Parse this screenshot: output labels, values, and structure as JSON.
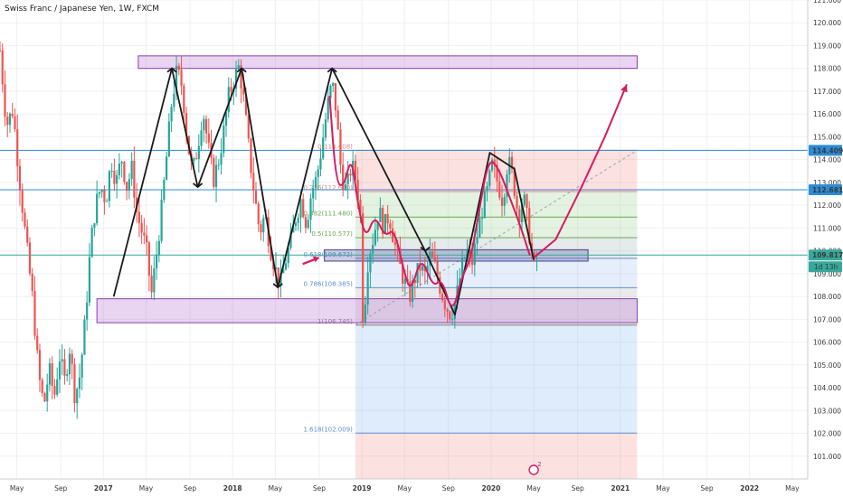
{
  "chart_data": {
    "type": "candlestick",
    "title": "Swiss Franc / Japanese Yen, 1W, FXCM",
    "y_axis": {
      "min": 100.0,
      "max": 121.0,
      "ticks": [
        {
          "v": 121,
          "label": "121.000"
        },
        {
          "v": 120,
          "label": "120.000"
        },
        {
          "v": 119,
          "label": "119.000"
        },
        {
          "v": 118,
          "label": "118.000"
        },
        {
          "v": 117,
          "label": "117.000"
        },
        {
          "v": 116,
          "label": "116.000"
        },
        {
          "v": 115,
          "label": "115.000"
        },
        {
          "v": 114,
          "label": "114.000"
        },
        {
          "v": 113,
          "label": "113.000"
        },
        {
          "v": 112,
          "label": "112.000"
        },
        {
          "v": 111,
          "label": "111.000"
        },
        {
          "v": 110,
          "label": "110.000"
        },
        {
          "v": 109,
          "label": "109.000"
        },
        {
          "v": 108,
          "label": "108.000"
        },
        {
          "v": 107,
          "label": "107.000"
        },
        {
          "v": 106,
          "label": "106.000"
        },
        {
          "v": 105,
          "label": "105.000"
        },
        {
          "v": 104,
          "label": "104.000"
        },
        {
          "v": 103,
          "label": "103.000"
        },
        {
          "v": 102,
          "label": "102.000"
        },
        {
          "v": 101,
          "label": "101.000"
        }
      ]
    },
    "x_axis": {
      "start": 2016.2,
      "end": 2022.45,
      "ticks": [
        {
          "v": 2016.33,
          "label": "May",
          "bold": false
        },
        {
          "v": 2016.67,
          "label": "Sep",
          "bold": false
        },
        {
          "v": 2017.0,
          "label": "2017",
          "bold": true
        },
        {
          "v": 2017.33,
          "label": "May",
          "bold": false
        },
        {
          "v": 2017.67,
          "label": "Sep",
          "bold": false
        },
        {
          "v": 2018.0,
          "label": "2018",
          "bold": true
        },
        {
          "v": 2018.33,
          "label": "May",
          "bold": false
        },
        {
          "v": 2018.67,
          "label": "Sep",
          "bold": false
        },
        {
          "v": 2019.0,
          "label": "2019",
          "bold": true
        },
        {
          "v": 2019.33,
          "label": "May",
          "bold": false
        },
        {
          "v": 2019.67,
          "label": "Sep",
          "bold": false
        },
        {
          "v": 2020.0,
          "label": "2020",
          "bold": true
        },
        {
          "v": 2020.33,
          "label": "May",
          "bold": false
        },
        {
          "v": 2020.67,
          "label": "Sep",
          "bold": false
        },
        {
          "v": 2021.0,
          "label": "2021",
          "bold": true
        },
        {
          "v": 2021.33,
          "label": "May",
          "bold": false
        },
        {
          "v": 2021.67,
          "label": "Sep",
          "bold": false
        },
        {
          "v": 2022.0,
          "label": "2022",
          "bold": true
        },
        {
          "v": 2022.33,
          "label": "May",
          "bold": false
        }
      ]
    },
    "price_path": [
      [
        2016.2,
        118.8
      ],
      [
        2016.25,
        115.5
      ],
      [
        2016.3,
        116.2
      ],
      [
        2016.35,
        113.2
      ],
      [
        2016.4,
        110.5
      ],
      [
        2016.45,
        108.0
      ],
      [
        2016.5,
        104.5
      ],
      [
        2016.54,
        103.2
      ],
      [
        2016.58,
        104.8
      ],
      [
        2016.62,
        103.6
      ],
      [
        2016.66,
        105.4
      ],
      [
        2016.7,
        104.3
      ],
      [
        2016.74,
        105.8
      ],
      [
        2016.78,
        103.6
      ],
      [
        2016.82,
        104.6
      ],
      [
        2016.86,
        107.0
      ],
      [
        2016.9,
        110.2
      ],
      [
        2016.94,
        112.0
      ],
      [
        2016.98,
        112.8
      ],
      [
        2017.02,
        112.2
      ],
      [
        2017.06,
        114.0
      ],
      [
        2017.1,
        113.0
      ],
      [
        2017.14,
        114.1
      ],
      [
        2017.18,
        112.8
      ],
      [
        2017.22,
        113.6
      ],
      [
        2017.26,
        111.6
      ],
      [
        2017.3,
        110.8
      ],
      [
        2017.34,
        109.8
      ],
      [
        2017.37,
        108.0
      ],
      [
        2017.41,
        109.8
      ],
      [
        2017.45,
        111.8
      ],
      [
        2017.49,
        114.2
      ],
      [
        2017.53,
        116.6
      ],
      [
        2017.57,
        117.9
      ],
      [
        2017.61,
        117.2
      ],
      [
        2017.65,
        114.8
      ],
      [
        2017.69,
        113.4
      ],
      [
        2017.73,
        114.6
      ],
      [
        2017.77,
        116.2
      ],
      [
        2017.81,
        114.6
      ],
      [
        2017.85,
        113.1
      ],
      [
        2017.89,
        113.9
      ],
      [
        2017.93,
        115.2
      ],
      [
        2017.97,
        116.8
      ],
      [
        2018.01,
        117.5
      ],
      [
        2018.05,
        118.1
      ],
      [
        2018.09,
        116.4
      ],
      [
        2018.13,
        114.2
      ],
      [
        2018.17,
        112.4
      ],
      [
        2018.21,
        110.8
      ],
      [
        2018.25,
        111.6
      ],
      [
        2018.29,
        110.2
      ],
      [
        2018.33,
        109.2
      ],
      [
        2018.37,
        108.5
      ],
      [
        2018.41,
        109.6
      ],
      [
        2018.45,
        110.4
      ],
      [
        2018.49,
        111.5
      ],
      [
        2018.53,
        112.3
      ],
      [
        2018.57,
        111.2
      ],
      [
        2018.61,
        112.6
      ],
      [
        2018.65,
        113.2
      ],
      [
        2018.69,
        114.6
      ],
      [
        2018.73,
        116.2
      ],
      [
        2018.77,
        117.4
      ],
      [
        2018.8,
        116.2
      ],
      [
        2018.84,
        113.4
      ],
      [
        2018.88,
        112.6
      ],
      [
        2018.92,
        113.8
      ],
      [
        2018.96,
        113.0
      ],
      [
        2018.99,
        111.5
      ],
      [
        2019.01,
        106.7
      ],
      [
        2019.05,
        109.8
      ],
      [
        2019.09,
        110.6
      ],
      [
        2019.13,
        111.8
      ],
      [
        2019.17,
        111.0
      ],
      [
        2019.21,
        111.6
      ],
      [
        2019.25,
        110.4
      ],
      [
        2019.29,
        109.4
      ],
      [
        2019.33,
        108.6
      ],
      [
        2019.37,
        108.0
      ],
      [
        2019.41,
        108.8
      ],
      [
        2019.45,
        109.3
      ],
      [
        2019.49,
        108.9
      ],
      [
        2019.53,
        109.8
      ],
      [
        2019.57,
        109.2
      ],
      [
        2019.61,
        108.3
      ],
      [
        2019.65,
        107.6
      ],
      [
        2019.69,
        107.2
      ],
      [
        2019.73,
        107.9
      ],
      [
        2019.77,
        109.2
      ],
      [
        2019.81,
        110.0
      ],
      [
        2019.85,
        109.4
      ],
      [
        2019.89,
        110.6
      ],
      [
        2019.93,
        111.8
      ],
      [
        2019.97,
        112.6
      ],
      [
        2020.01,
        113.8
      ],
      [
        2020.05,
        113.0
      ],
      [
        2020.09,
        112.2
      ],
      [
        2020.13,
        114.0
      ],
      [
        2020.17,
        113.2
      ],
      [
        2020.21,
        111.5
      ],
      [
        2020.25,
        112.4
      ],
      [
        2020.29,
        111.0
      ],
      [
        2020.33,
        109.2
      ],
      [
        2020.36,
        109.8
      ]
    ],
    "horizontal_lines": [
      {
        "price": 114.409,
        "label": "114.409"
      },
      {
        "price": 112.681,
        "label": "112.681"
      },
      {
        "price": 109.817,
        "label": "109.817"
      }
    ],
    "countdown_label": "1d 13h",
    "zones": [
      {
        "t1": 2017.27,
        "t2": 2021.13,
        "p1": 118.0,
        "p2": 118.55
      },
      {
        "t1": 2016.95,
        "t2": 2021.13,
        "p1": 106.85,
        "p2": 107.9
      },
      {
        "t1": 2018.71,
        "t2": 2020.75,
        "p1": 109.55,
        "p2": 110.05
      }
    ],
    "fibonacci": {
      "t1": 2018.95,
      "t2": 2021.13,
      "levels": [
        {
          "price": 114.408,
          "label": "0(114.408)",
          "color": "#e88585"
        },
        {
          "price": 112.6,
          "label": "0.236(112.600)",
          "color": "#e88585"
        },
        {
          "price": 111.48,
          "label": "0.382(111.480)",
          "color": "#6aa84f"
        },
        {
          "price": 110.577,
          "label": "0.5(110.577)",
          "color": "#6aa84f"
        },
        {
          "price": 109.672,
          "label": "0.618(109.672)",
          "color": "#5e8fd0"
        },
        {
          "price": 108.385,
          "label": "0.786(108.385)",
          "color": "#5e8fd0"
        },
        {
          "price": 106.745,
          "label": "1(106.745)",
          "color": "#7a7a7a"
        },
        {
          "price": 102.009,
          "label": "1.618(102.009)",
          "color": "#5e8fd0"
        }
      ]
    },
    "zigzag": [
      [
        2017.08,
        108.0
      ],
      [
        2017.53,
        118.0
      ],
      [
        2017.73,
        112.8
      ],
      [
        2018.07,
        118.0
      ],
      [
        2018.35,
        108.4
      ],
      [
        2018.77,
        118.0
      ],
      [
        2019.49,
        110.0
      ],
      [
        2019.72,
        107.2
      ],
      [
        2019.99,
        114.3
      ],
      [
        2020.18,
        113.6
      ],
      [
        2020.33,
        109.6
      ]
    ],
    "projection": [
      [
        2020.33,
        109.7
      ],
      [
        2020.5,
        110.5
      ],
      [
        2020.7,
        112.8
      ],
      [
        2020.88,
        115.0
      ],
      [
        2021.05,
        117.3
      ]
    ],
    "event_marker": "2"
  }
}
